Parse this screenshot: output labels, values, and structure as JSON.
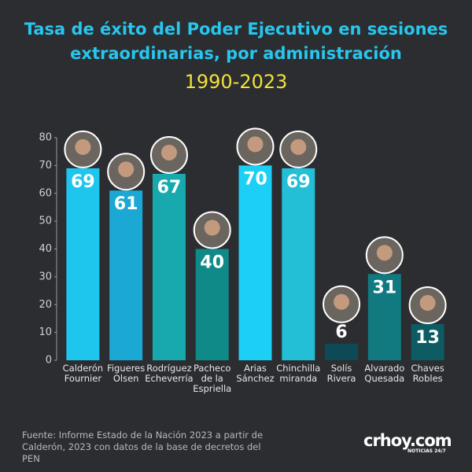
{
  "chart_data": {
    "type": "bar",
    "title": "Tasa de éxito del Poder Ejecutivo en sesiones extraordinarias, por administración",
    "subtitle": "1990-2023",
    "categories": [
      "Calderón Fournier",
      "Figueres Olsen",
      "Rodríguez Echeverría",
      "Pacheco de la Espriella",
      "Arias Sánchez",
      "Chinchilla miranda",
      "Solís Rivera",
      "Alvarado Quesada",
      "Chaves Robles"
    ],
    "values": [
      69,
      61,
      67,
      40,
      70,
      69,
      6,
      31,
      13
    ],
    "colors": [
      "#1ec6ee",
      "#1ba8d4",
      "#17a9ae",
      "#0f8a88",
      "#1ccff4",
      "#22bfd6",
      "#0d4a55",
      "#107a80",
      "#0d5c63"
    ],
    "ylim": [
      0,
      80
    ],
    "yticks": [
      0,
      10,
      20,
      30,
      40,
      50,
      60,
      70,
      80
    ],
    "source": "Fuente: Informe Estado de la Nación 2023 a partir de Calderón, 2023 con datos de la base de decretos del PEN",
    "logo": "crhoy.com",
    "logo_tagline": "NOTICIAS 24/7"
  }
}
